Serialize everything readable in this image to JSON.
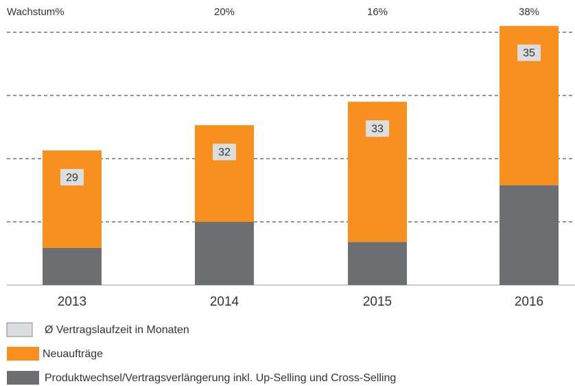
{
  "chart_data": {
    "type": "stacked_bar",
    "categories": [
      "2013",
      "2014",
      "2015",
      "2016"
    ],
    "series": [
      {
        "name": "Produktwechsel/Vertragsverlängerung inkl. Up-Selling und Cross-Selling",
        "color": "#6d6e71",
        "values": [
          0.59,
          1.0,
          0.68,
          1.58
        ]
      },
      {
        "name": "Neuaufträge",
        "color": "#f7901e",
        "values": [
          1.54,
          1.53,
          2.22,
          2.52
        ]
      }
    ],
    "duration": {
      "name": "Ø Vertragslaufzeit in Monaten",
      "color": "#dcdddf",
      "values": [
        29,
        32,
        33,
        35
      ]
    },
    "growth_title": "Wachstum%",
    "growth": [
      null,
      20,
      16,
      38
    ],
    "growth_labels": [
      null,
      "20%",
      "16%",
      "38%"
    ],
    "ylim": [
      0,
      4.1
    ],
    "grid_lines": [
      1,
      2,
      3,
      4
    ],
    "grid": true
  }
}
